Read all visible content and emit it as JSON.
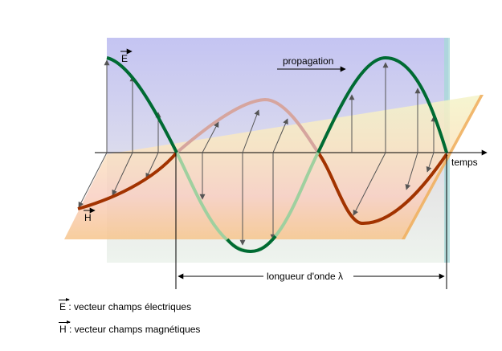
{
  "labels": {
    "E": "E",
    "H": "H",
    "propagation": "propagation",
    "temps": "temps",
    "wavelength": "longueur d'onde λ"
  },
  "legend": {
    "E_symbol": "E",
    "E_text": ":  vecteur champs électriques",
    "H_symbol": "H",
    "H_text": ":  vecteur champs magnétiques"
  },
  "colors": {
    "electric_wave": "#006b33",
    "electric_wave_back": "#9fd09f",
    "magnetic_wave": "#a23300",
    "magnetic_wave_back": "#d6a59e",
    "vertical_plane_top": "#c9c9f2",
    "horizontal_plane": "#fbd7a3",
    "axis": "#000000"
  }
}
